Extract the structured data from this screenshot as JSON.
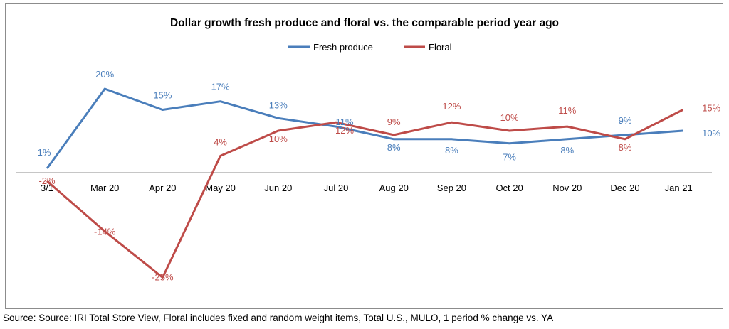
{
  "chart_data": {
    "type": "line",
    "title": "Dollar growth fresh produce and floral vs. the comparable period  year ago",
    "xlabel": "",
    "ylabel": "",
    "categories": [
      "3/1",
      "Mar 20",
      "Apr 20",
      "May 20",
      "Jun 20",
      "Jul 20",
      "Aug 20",
      "Sep 20",
      "Oct 20",
      "Nov 20",
      "Dec 20",
      "Jan 21"
    ],
    "ylim": [
      -25,
      20
    ],
    "grid": false,
    "legend_position": "top",
    "series": [
      {
        "name": "Fresh produce",
        "color": "#4a7ebb",
        "values": [
          1,
          20,
          15,
          17,
          13,
          11,
          8,
          8,
          7,
          8,
          9,
          10
        ],
        "labels": [
          "1%",
          "20%",
          "15%",
          "17%",
          "13%",
          "11%",
          "8%",
          "8%",
          "7%",
          "8%",
          "9%",
          "10%"
        ]
      },
      {
        "name": "Floral",
        "color": "#be4b48",
        "values": [
          -2,
          -14,
          -25,
          4,
          10,
          12,
          9,
          12,
          10,
          11,
          8,
          15
        ],
        "labels": [
          "-2%",
          "-14%",
          "-25%",
          "4%",
          "10%",
          "12%",
          "9%",
          "12%",
          "10%",
          "11%",
          "8%",
          "15%"
        ]
      }
    ]
  },
  "source_note": "Source: Source: IRI Total Store View, Floral includes fixed and random weight items, Total U.S., MULO, 1 period % change vs. YA"
}
